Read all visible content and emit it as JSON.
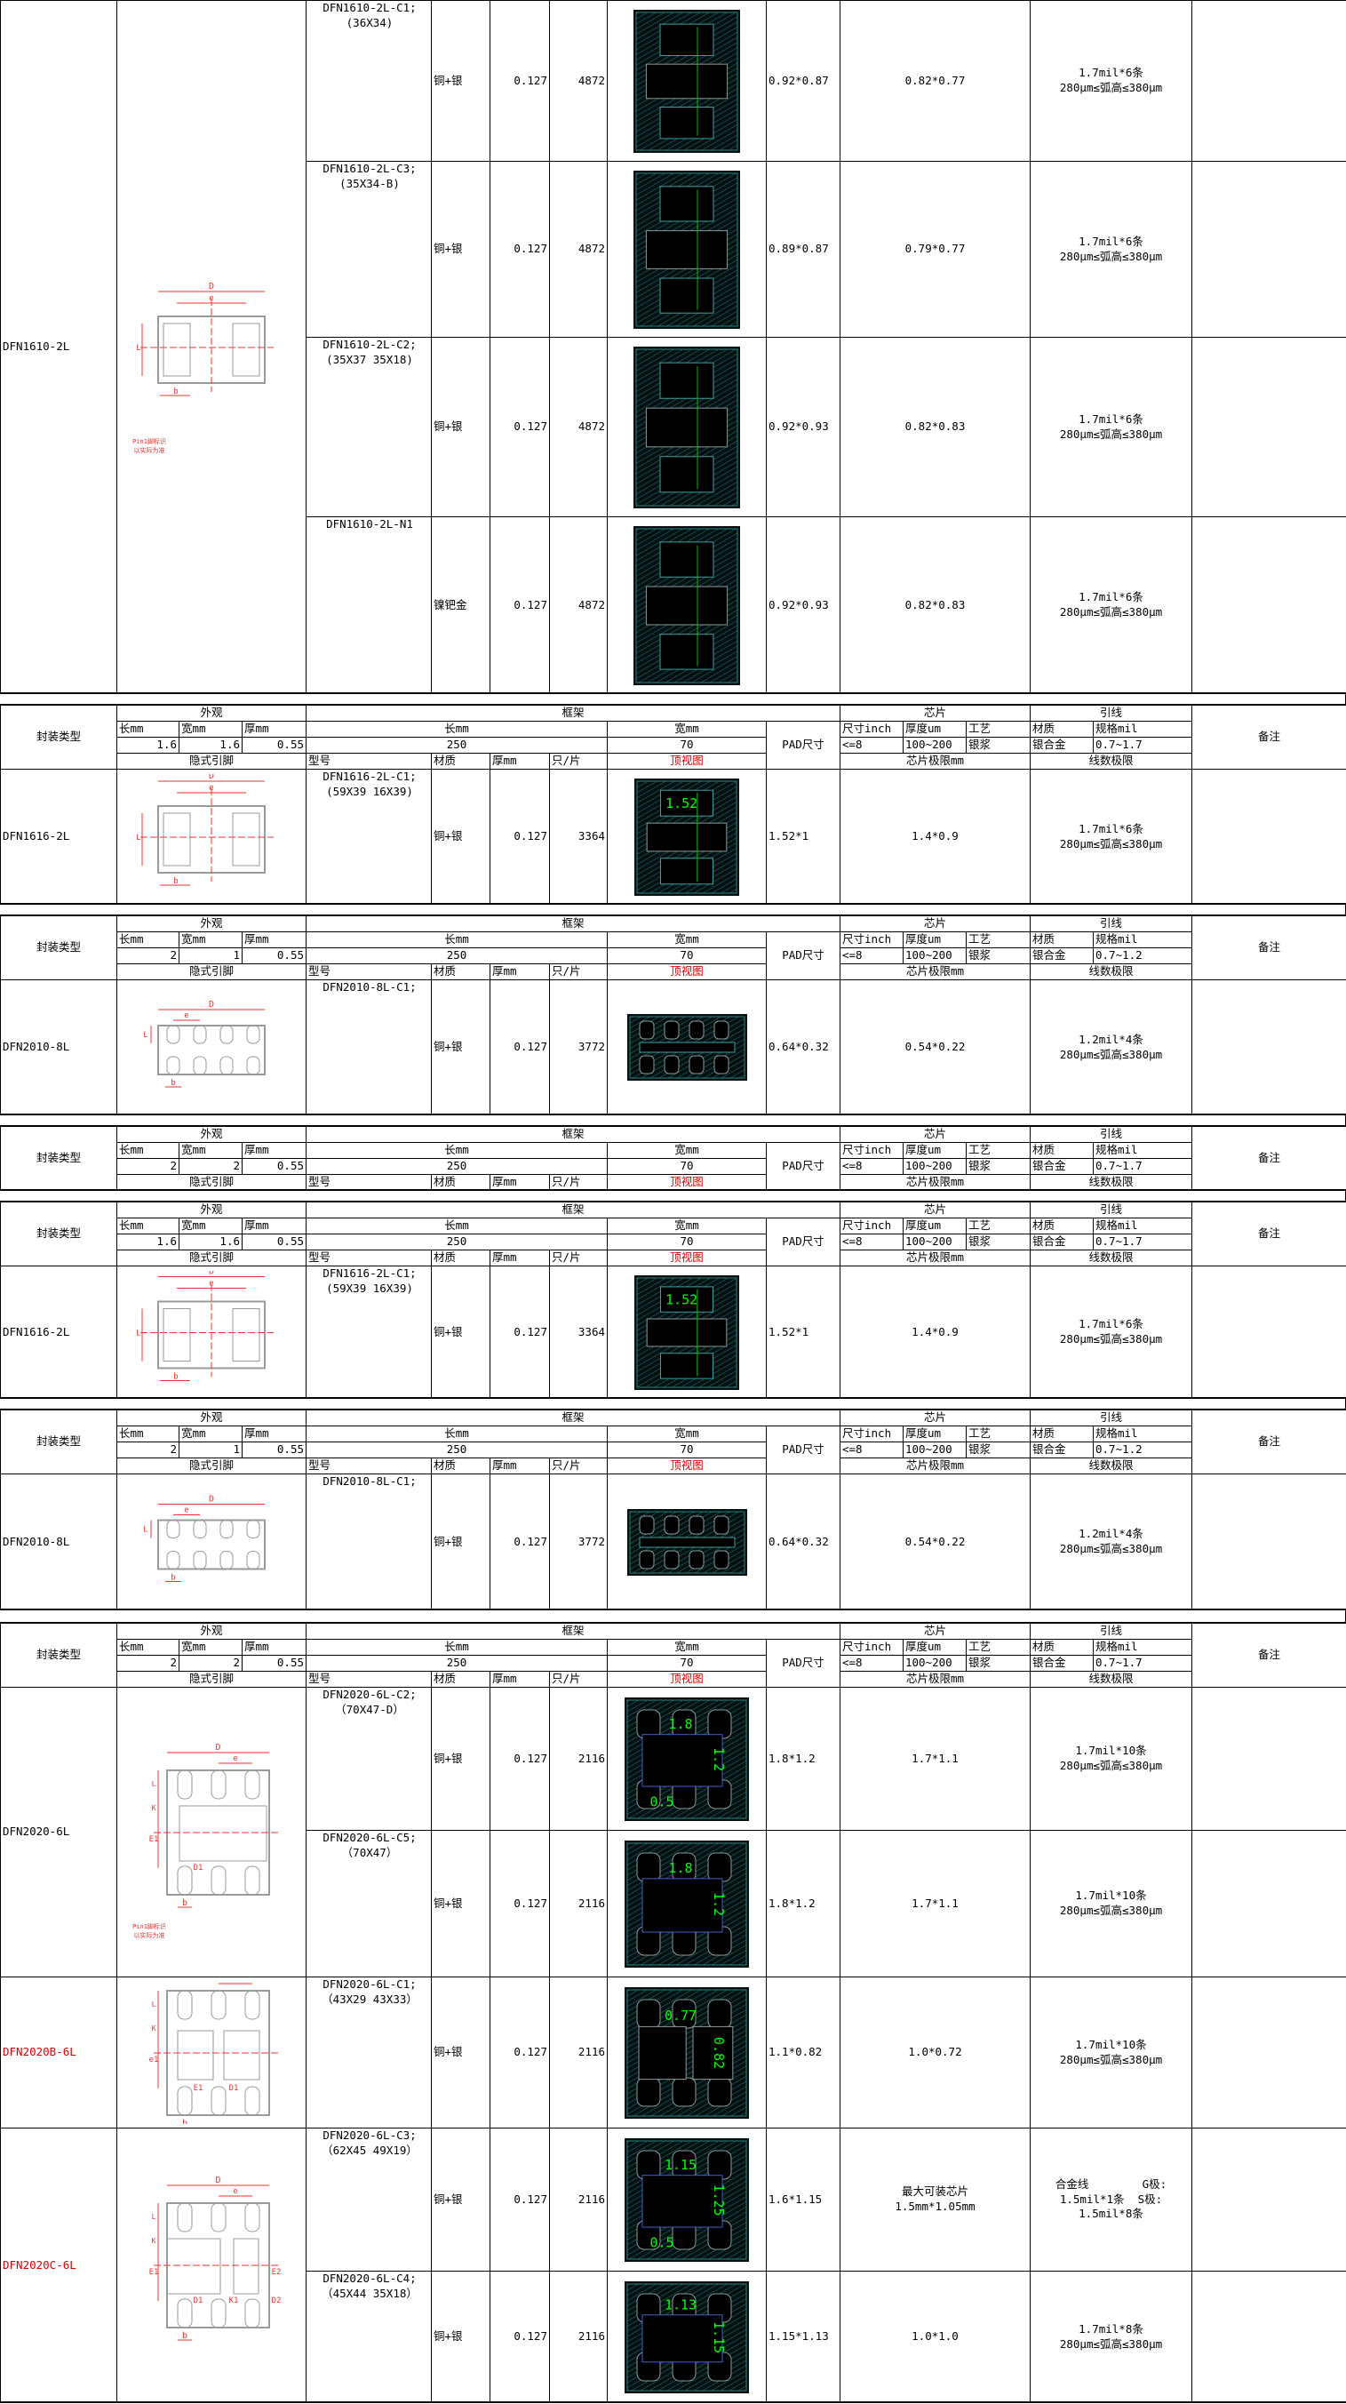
{
  "labels": {
    "package_type": "封装类型",
    "appearance": "外观",
    "frame": "框架",
    "chip": "芯片",
    "wire": "引线",
    "remarks": "备注",
    "pkg_length": "长mm",
    "pkg_width": "宽mm",
    "pkg_thickness": "厚mm",
    "frame_length": "长mm",
    "frame_width": "宽mm",
    "pad_size": "PAD尺寸",
    "chip_size": "尺寸inch",
    "chip_thickness": "厚度um",
    "process": "工艺",
    "wire_material": "材质",
    "wire_spec": "规格mil",
    "hidden_pins": "隐式引脚",
    "model": "型号",
    "material": "材质",
    "thickness": "厚mm",
    "per_strip": "只/片",
    "top_view": "顶视图",
    "chip_limit": "芯片极限mm",
    "wire_limit": "线数极限"
  },
  "colors": {
    "red_text": "#e00000",
    "cad_bg": "#041010",
    "cad_hatch": "#1e6a6a",
    "cad_dim": "#00ff00"
  },
  "sections": [
    {
      "header": null,
      "groups": [
        {
          "package": "DFN1610-2L",
          "red": false,
          "diagram": {
            "type": "2L",
            "labels": [
              "D",
              "e",
              "L",
              "b"
            ],
            "note": [
              "Pin1脚标识",
              "以实际为准"
            ]
          },
          "rows": [
            {
              "model": [
                "DFN1610-2L-C1;",
                "(36X34)"
              ],
              "material": "铜+银",
              "thickness": "0.127",
              "per_strip": "4872",
              "pad": "0.92*0.87",
              "chip_limit": [
                "0.82*0.77"
              ],
              "wire": [
                "1.7mil*6条",
                "280μm≤弧高≤380μm"
              ],
              "view": {
                "type": "2L",
                "dims": []
              }
            },
            {
              "model": [
                "DFN1610-2L-C3;",
                "(35X34-B)"
              ],
              "material": "铜+银",
              "thickness": "0.127",
              "per_strip": "4872",
              "pad": "0.89*0.87",
              "chip_limit": [
                "0.79*0.77"
              ],
              "wire": [
                "1.7mil*6条",
                "280μm≤弧高≤380μm"
              ],
              "view": {
                "type": "2L",
                "dims": []
              }
            },
            {
              "model": [
                "DFN1610-2L-C2;",
                "(35X37 35X18)"
              ],
              "material": "铜+银",
              "thickness": "0.127",
              "per_strip": "4872",
              "pad": "0.92*0.93",
              "chip_limit": [
                "0.82*0.83"
              ],
              "wire": [
                "1.7mil*6条",
                "280μm≤弧高≤380μm"
              ],
              "view": {
                "type": "2L",
                "dims": []
              }
            },
            {
              "model": [
                "DFN1610-2L-N1"
              ],
              "material": "镍钯金",
              "thickness": "0.127",
              "per_strip": "4872",
              "pad": "0.92*0.93",
              "chip_limit": [
                "0.82*0.83"
              ],
              "wire": [
                "1.7mil*6条",
                "280μm≤弧高≤380μm"
              ],
              "view": {
                "type": "2L",
                "dims": []
              }
            }
          ]
        }
      ]
    },
    {
      "header": {
        "pkg_length": "1.6",
        "pkg_width": "1.6",
        "pkg_thickness": "0.55",
        "frame_length": "250",
        "frame_width": "70",
        "chip_size": "<=8",
        "chip_thickness": "100~200",
        "process": "银浆",
        "wire_material": "银合金",
        "wire_spec": "0.7~1.7"
      },
      "groups": [
        {
          "package": "DFN1616-2L",
          "red": false,
          "diagram": {
            "type": "2L",
            "labels": [
              "D",
              "e",
              "L",
              "b"
            ],
            "note": []
          },
          "rows": [
            {
              "model": [
                "DFN1616-2L-C1;",
                "(59X39 16X39)"
              ],
              "material": "铜+银",
              "thickness": "0.127",
              "per_strip": "3364",
              "pad": "1.52*1",
              "chip_limit": [
                "1.4*0.9"
              ],
              "wire": [
                "1.7mil*6条",
                "280μm≤弧高≤380μm"
              ],
              "view": {
                "type": "2L",
                "dims": [
                  "1.52"
                ]
              }
            }
          ]
        }
      ]
    },
    {
      "header": {
        "pkg_length": "2",
        "pkg_width": "1",
        "pkg_thickness": "0.55",
        "frame_length": "250",
        "frame_width": "70",
        "chip_size": "<=8",
        "chip_thickness": "100~200",
        "process": "银浆",
        "wire_material": "银合金",
        "wire_spec": "0.7~1.2"
      },
      "groups": [
        {
          "package": "DFN2010-8L",
          "red": false,
          "diagram": {
            "type": "8L",
            "labels": [
              "D",
              "e",
              "L",
              "b"
            ],
            "note": []
          },
          "rows": [
            {
              "model": [
                "DFN2010-8L-C1;"
              ],
              "material": "铜+银",
              "thickness": "0.127",
              "per_strip": "3772",
              "pad": "0.64*0.32",
              "chip_limit": [
                "0.54*0.22"
              ],
              "wire": [
                "1.2mil*4条",
                "280μm≤弧高≤380μm"
              ],
              "view": {
                "type": "8L",
                "dims": []
              }
            }
          ]
        }
      ]
    },
    {
      "header": {
        "pkg_length": "2",
        "pkg_width": "2",
        "pkg_thickness": "0.55",
        "frame_length": "250",
        "frame_width": "70",
        "chip_size": "<=8",
        "chip_thickness": "100~200",
        "process": "银浆",
        "wire_material": "银合金",
        "wire_spec": "0.7~1.7"
      },
      "groups": []
    },
    {
      "header": {
        "pkg_length": "1.6",
        "pkg_width": "1.6",
        "pkg_thickness": "0.55",
        "frame_length": "250",
        "frame_width": "70",
        "chip_size": "<=8",
        "chip_thickness": "100~200",
        "process": "银浆",
        "wire_material": "银合金",
        "wire_spec": "0.7~1.7"
      },
      "groups": [
        {
          "package": "DFN1616-2L",
          "red": false,
          "diagram": {
            "type": "2L",
            "labels": [
              "D",
              "e",
              "L",
              "b"
            ],
            "note": []
          },
          "rows": [
            {
              "model": [
                "DFN1616-2L-C1;",
                "(59X39 16X39)"
              ],
              "material": "铜+银",
              "thickness": "0.127",
              "per_strip": "3364",
              "pad": "1.52*1",
              "chip_limit": [
                "1.4*0.9"
              ],
              "wire": [
                "1.7mil*6条",
                "280μm≤弧高≤380μm"
              ],
              "view": {
                "type": "2L",
                "dims": [
                  "1.52"
                ]
              }
            }
          ]
        }
      ]
    },
    {
      "header": {
        "pkg_length": "2",
        "pkg_width": "1",
        "pkg_thickness": "0.55",
        "frame_length": "250",
        "frame_width": "70",
        "chip_size": "<=8",
        "chip_thickness": "100~200",
        "process": "银浆",
        "wire_material": "银合金",
        "wire_spec": "0.7~1.2"
      },
      "groups": [
        {
          "package": "DFN2010-8L",
          "red": false,
          "diagram": {
            "type": "8L",
            "labels": [
              "D",
              "e",
              "L",
              "b"
            ],
            "note": []
          },
          "rows": [
            {
              "model": [
                "DFN2010-8L-C1;"
              ],
              "material": "铜+银",
              "thickness": "0.127",
              "per_strip": "3772",
              "pad": "0.64*0.32",
              "chip_limit": [
                "0.54*0.22"
              ],
              "wire": [
                "1.2mil*4条",
                "280μm≤弧高≤380μm"
              ],
              "view": {
                "type": "8L",
                "dims": []
              }
            }
          ]
        }
      ]
    },
    {
      "header": {
        "pkg_length": "2",
        "pkg_width": "2",
        "pkg_thickness": "0.55",
        "frame_length": "250",
        "frame_width": "70",
        "chip_size": "<=8",
        "chip_thickness": "100~200",
        "process": "银浆",
        "wire_material": "银合金",
        "wire_spec": "0.7~1.7"
      },
      "groups": [
        {
          "package": "DFN2020-6L",
          "red": false,
          "diagram": {
            "type": "6L",
            "labels": [
              "D",
              "e",
              "L",
              "K",
              "E1",
              "D1",
              "b"
            ],
            "note": [
              "Pin1脚标识",
              "以实际为准"
            ]
          },
          "rows": [
            {
              "model": [
                "DFN2020-6L-C2;",
                "（70X47-D）"
              ],
              "material": "铜+银",
              "thickness": "0.127",
              "per_strip": "2116",
              "pad": "1.8*1.2",
              "chip_limit": [
                "1.7*1.1"
              ],
              "wire": [
                "1.7mil*10条",
                "280μm≤弧高≤380μm"
              ],
              "view": {
                "type": "6L",
                "dims": [
                  "1.8",
                  "1.2",
                  "0.5"
                ]
              }
            },
            {
              "model": [
                "DFN2020-6L-C5;",
                "（70X47）"
              ],
              "material": "铜+银",
              "thickness": "0.127",
              "per_strip": "2116",
              "pad": "1.8*1.2",
              "chip_limit": [
                "1.7*1.1"
              ],
              "wire": [
                "1.7mil*10条",
                "280μm≤弧高≤380μm"
              ],
              "view": {
                "type": "6L",
                "dims": [
                  "1.8",
                  "1.2"
                ]
              }
            }
          ]
        },
        {
          "package": "DFN2020B-6L",
          "red": true,
          "diagram": {
            "type": "6LB",
            "labels": [
              "D",
              "e",
              "L",
              "K",
              "e1",
              "E1",
              "D1",
              "b"
            ],
            "note": []
          },
          "rows": [
            {
              "model": [
                "DFN2020-6L-C1;",
                "（43X29 43X33）"
              ],
              "material": "铜+银",
              "thickness": "0.127",
              "per_strip": "2116",
              "pad": "1.1*0.82",
              "chip_limit": [
                "1.0*0.72"
              ],
              "wire": [
                "1.7mil*10条",
                "280μm≤弧高≤380μm"
              ],
              "view": {
                "type": "6LB",
                "dims": [
                  "0.77",
                  "0.82"
                ]
              }
            }
          ]
        },
        {
          "package": "DFN2020C-6L",
          "red": true,
          "diagram": {
            "type": "6LC",
            "labels": [
              "D",
              "e",
              "L",
              "K",
              "E1",
              "D1",
              "K1",
              "D2",
              "E2",
              "b"
            ],
            "note": []
          },
          "rows": [
            {
              "model": [
                "DFN2020-6L-C3;",
                "（62X45 49X19）"
              ],
              "material": "铜+银",
              "thickness": "0.127",
              "per_strip": "2116",
              "pad": "1.6*1.15",
              "chip_limit": [
                "最大可装芯片",
                "1.5mm*1.05mm"
              ],
              "wire": [
                "合金线        G极:",
                "1.5mil*1条  S极:",
                "1.5mil*8条"
              ],
              "view": {
                "type": "6L",
                "dims": [
                  "1.15",
                  "1.25",
                  "0.5"
                ]
              }
            },
            {
              "model": [
                "DFN2020-6L-C4;",
                "（45X44 35X18）"
              ],
              "material": "铜+银",
              "thickness": "0.127",
              "per_strip": "2116",
              "pad": "1.15*1.13",
              "chip_limit": [
                "1.0*1.0"
              ],
              "wire": [
                "1.7mil*8条",
                "280μm≤弧高≤380μm"
              ],
              "view": {
                "type": "6L",
                "dims": [
                  "1.13",
                  "1.15"
                ]
              }
            }
          ]
        }
      ]
    }
  ]
}
